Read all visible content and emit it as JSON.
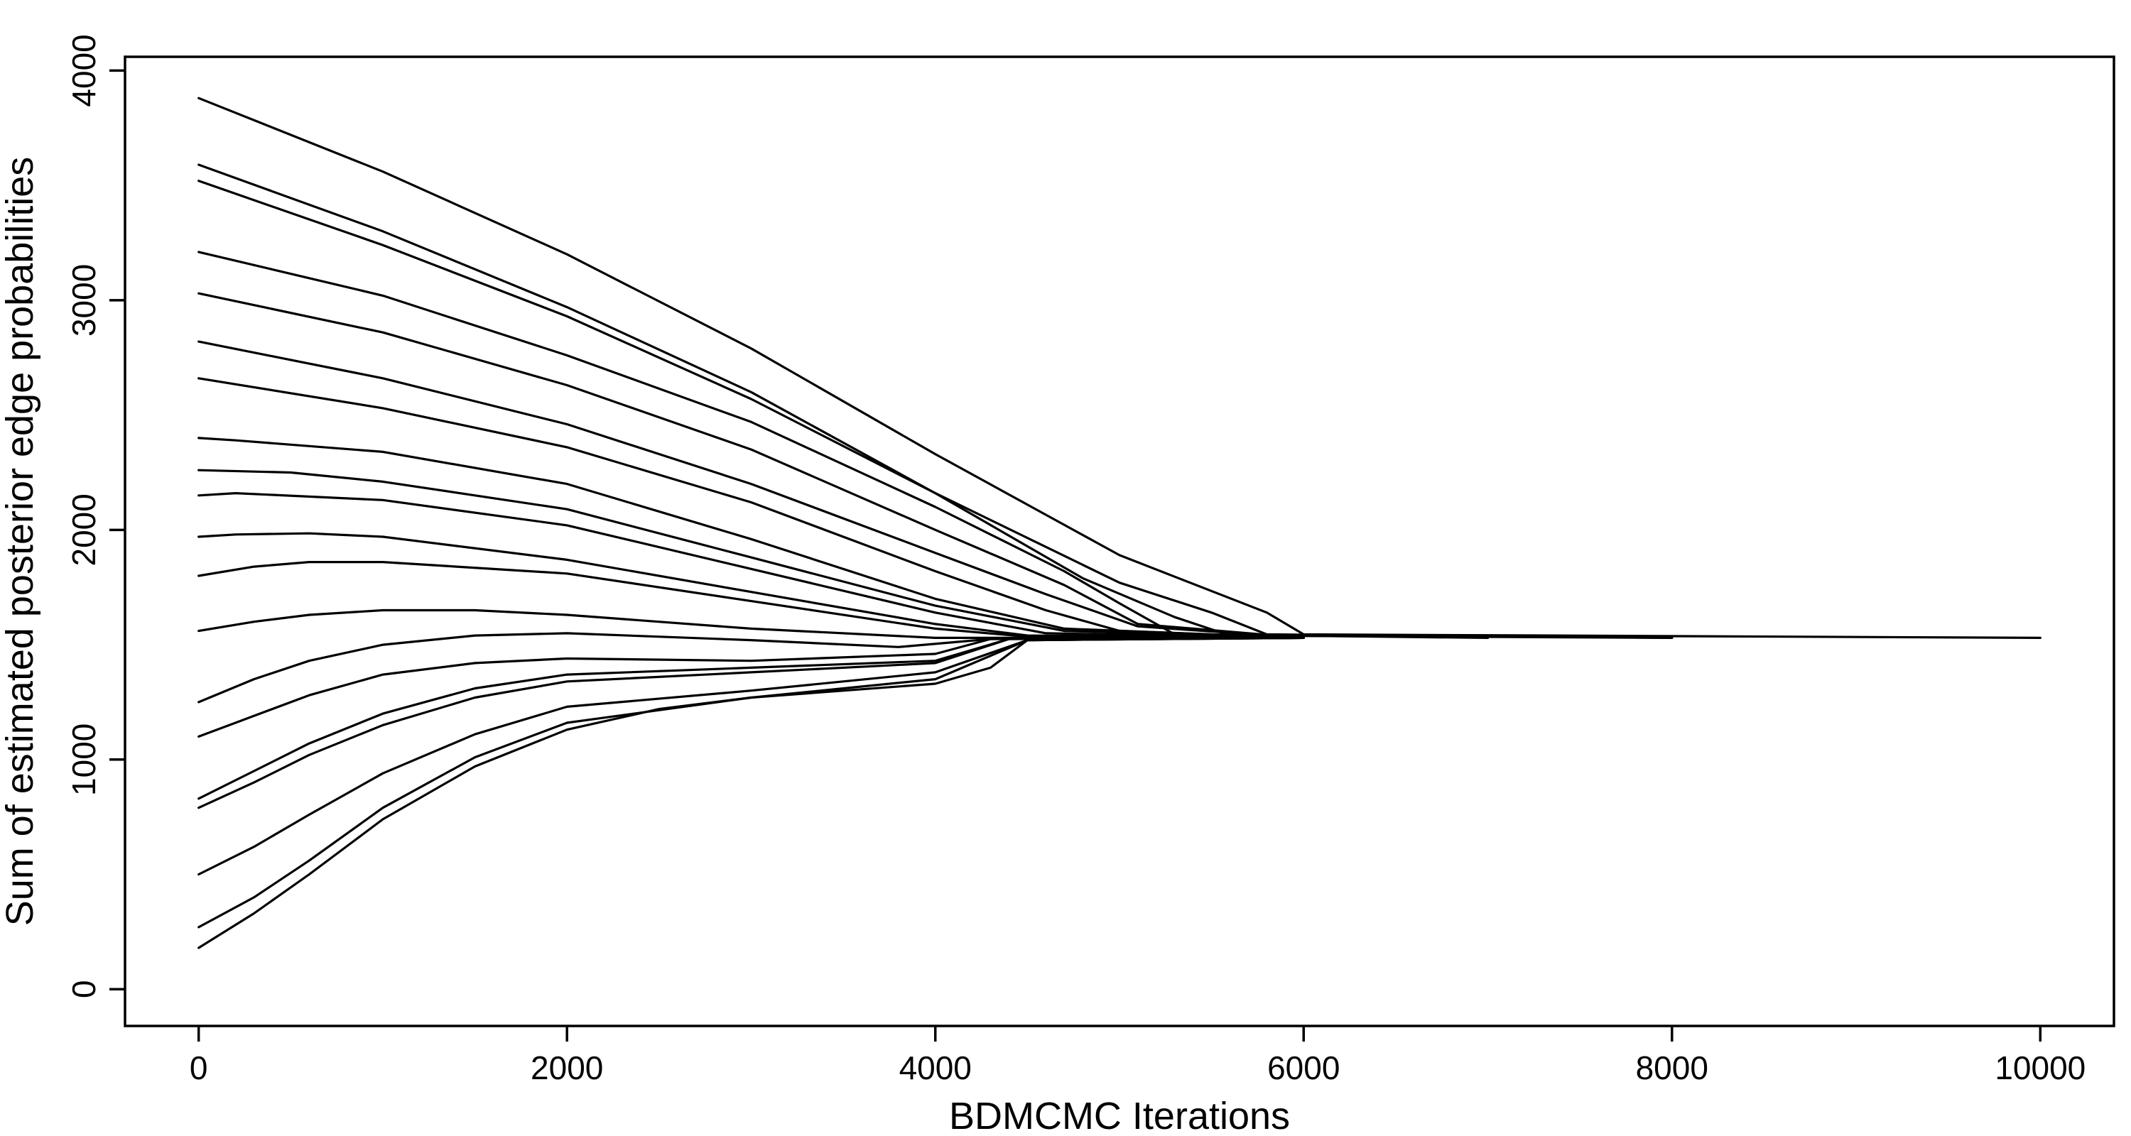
{
  "chart_data": {
    "type": "line",
    "title": "",
    "xlabel": "BDMCMC Iterations",
    "ylabel": "Sum of estimated posterior edge probabilities",
    "xlim": [
      -400,
      10400
    ],
    "ylim": [
      -160,
      4060
    ],
    "xticks": [
      0,
      2000,
      4000,
      6000,
      8000,
      10000
    ],
    "yticks": [
      0,
      1000,
      2000,
      3000,
      4000
    ],
    "xtick_labels": [
      "0",
      "2000",
      "4000",
      "6000",
      "8000",
      "10000"
    ],
    "ytick_labels": [
      "0",
      "1000",
      "2000",
      "3000",
      "4000"
    ],
    "grid": false,
    "legend": "none",
    "line_color": "#000000",
    "final_value": 1530,
    "series": [
      {
        "x": [
          0,
          1000,
          2000,
          3000,
          4000,
          5000,
          5800,
          6000,
          10000
        ],
        "y": [
          3880,
          3560,
          3200,
          2790,
          2330,
          1890,
          1640,
          1545,
          1530
        ]
      },
      {
        "x": [
          0,
          1000,
          2000,
          3000,
          4000,
          5000,
          5500,
          5800,
          8000
        ],
        "y": [
          3590,
          3300,
          2970,
          2600,
          2160,
          1770,
          1640,
          1545,
          1530
        ]
      },
      {
        "x": [
          0,
          1000,
          2000,
          3000,
          4000,
          4800,
          5300,
          5600,
          8000
        ],
        "y": [
          3520,
          3240,
          2930,
          2570,
          2160,
          1790,
          1620,
          1540,
          1530
        ]
      },
      {
        "x": [
          0,
          1000,
          2000,
          3000,
          4000,
          4700,
          5000,
          5300,
          7000
        ],
        "y": [
          3210,
          3020,
          2760,
          2470,
          2100,
          1820,
          1680,
          1545,
          1530
        ]
      },
      {
        "x": [
          0,
          1000,
          2000,
          3000,
          4000,
          4700,
          5100,
          6000
        ],
        "y": [
          3030,
          2860,
          2630,
          2350,
          2000,
          1760,
          1590,
          1530
        ]
      },
      {
        "x": [
          0,
          1000,
          2000,
          3000,
          4000,
          4600,
          5100,
          6000
        ],
        "y": [
          2820,
          2660,
          2460,
          2200,
          1900,
          1720,
          1580,
          1530
        ]
      },
      {
        "x": [
          0,
          1000,
          2000,
          3000,
          4000,
          4600,
          5000,
          6000
        ],
        "y": [
          2660,
          2530,
          2360,
          2120,
          1820,
          1650,
          1560,
          1530
        ]
      },
      {
        "x": [
          0,
          200,
          1000,
          2000,
          3000,
          4000,
          4700,
          6000
        ],
        "y": [
          2400,
          2390,
          2340,
          2200,
          1960,
          1700,
          1570,
          1530
        ]
      },
      {
        "x": [
          0,
          500,
          1000,
          2000,
          3000,
          4000,
          4700,
          6000
        ],
        "y": [
          2260,
          2250,
          2210,
          2090,
          1880,
          1670,
          1560,
          1530
        ]
      },
      {
        "x": [
          0,
          200,
          1000,
          2000,
          3000,
          4000,
          4600,
          6000
        ],
        "y": [
          2150,
          2160,
          2130,
          2020,
          1830,
          1640,
          1550,
          1530
        ]
      },
      {
        "x": [
          0,
          200,
          600,
          1000,
          2000,
          3000,
          4000,
          4500,
          6000
        ],
        "y": [
          1970,
          1980,
          1985,
          1970,
          1870,
          1730,
          1590,
          1540,
          1530
        ]
      },
      {
        "x": [
          0,
          300,
          600,
          1000,
          2000,
          3000,
          4000,
          4500,
          6000
        ],
        "y": [
          1800,
          1840,
          1860,
          1860,
          1810,
          1690,
          1570,
          1535,
          1530
        ]
      },
      {
        "x": [
          0,
          300,
          600,
          1000,
          1500,
          2000,
          3000,
          4000,
          4500,
          6000
        ],
        "y": [
          1560,
          1600,
          1630,
          1650,
          1650,
          1630,
          1570,
          1530,
          1530,
          1530
        ]
      },
      {
        "x": [
          0,
          300,
          600,
          1000,
          1500,
          2000,
          3000,
          3800,
          4300,
          6000
        ],
        "y": [
          1250,
          1350,
          1430,
          1500,
          1540,
          1550,
          1520,
          1490,
          1525,
          1530
        ]
      },
      {
        "x": [
          0,
          300,
          600,
          1000,
          1500,
          2000,
          3000,
          4000,
          4300,
          6000
        ],
        "y": [
          1100,
          1190,
          1280,
          1370,
          1420,
          1440,
          1430,
          1460,
          1525,
          1530
        ]
      },
      {
        "x": [
          0,
          300,
          600,
          1000,
          1500,
          2000,
          3000,
          4000,
          4400,
          6000
        ],
        "y": [
          830,
          950,
          1070,
          1200,
          1310,
          1370,
          1400,
          1430,
          1525,
          1530
        ]
      },
      {
        "x": [
          0,
          300,
          600,
          1000,
          1500,
          2000,
          3000,
          4000,
          4400,
          6000
        ],
        "y": [
          790,
          900,
          1020,
          1150,
          1270,
          1340,
          1380,
          1420,
          1525,
          1530
        ]
      },
      {
        "x": [
          0,
          300,
          600,
          1000,
          1500,
          2000,
          3000,
          4000,
          4500,
          6000
        ],
        "y": [
          500,
          620,
          760,
          940,
          1110,
          1230,
          1300,
          1380,
          1520,
          1530
        ]
      },
      {
        "x": [
          0,
          300,
          600,
          1000,
          1500,
          2000,
          3000,
          4000,
          4500,
          6000
        ],
        "y": [
          270,
          400,
          560,
          790,
          1010,
          1160,
          1270,
          1350,
          1520,
          1530
        ]
      },
      {
        "x": [
          0,
          300,
          600,
          1000,
          1500,
          2000,
          2500,
          3000,
          4000,
          4300,
          4500,
          6000
        ],
        "y": [
          180,
          330,
          500,
          740,
          970,
          1130,
          1220,
          1270,
          1330,
          1400,
          1520,
          1530
        ]
      }
    ]
  }
}
